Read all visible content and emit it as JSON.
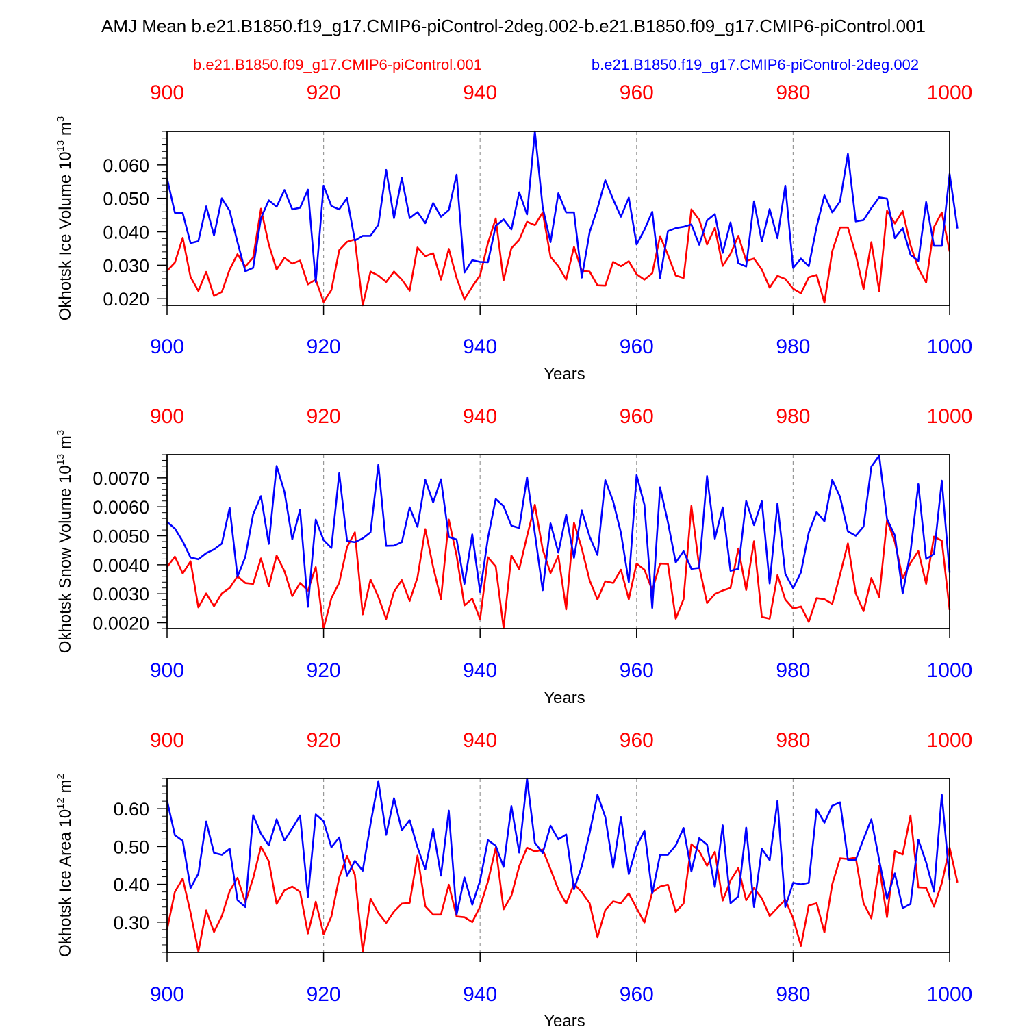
{
  "title": "AMJ Mean b.e21.B1850.f19_g17.CMIP6-piControl-2deg.002-b.e21.B1850.f09_g17.CMIP6-piControl.001",
  "legend": {
    "red_label": "b.e21.B1850.f09_g17.CMIP6-piControl.001",
    "blue_label": "b.e21.B1850.f19_g17.CMIP6-piControl-2deg.002"
  },
  "colors": {
    "red": "#ff0000",
    "blue": "#0000ff",
    "axis": "#000000",
    "grid": "#999999"
  },
  "chart_data": [
    {
      "type": "line",
      "title": "",
      "xlabel": "Years",
      "ylabel": "Okhotsk Ice Volume",
      "yunit_base": "10",
      "yunit_exp": "13",
      "yunit_rest": "m",
      "yunit_rest_exp": "3",
      "xlim": [
        900,
        1000
      ],
      "ylim": [
        0.018,
        0.07
      ],
      "yticks": [
        0.02,
        0.03,
        0.04,
        0.05,
        0.06
      ],
      "ytick_labels": [
        "0.020",
        "0.030",
        "0.040",
        "0.050",
        "0.060"
      ],
      "yminor_step": 0.002,
      "xticks": [
        900,
        920,
        940,
        960,
        980,
        1000
      ],
      "xtick_labels": [
        "900",
        "920",
        "940",
        "960",
        "980",
        "1000"
      ],
      "grid_x": [
        920,
        940,
        960,
        980
      ],
      "series": [
        {
          "name": "b.e21.B1850.f09_g17.CMIP6-piControl.001",
          "color": "red",
          "x_start": 900,
          "x_step": 1,
          "values": [
            0.0283,
            0.0308,
            0.0382,
            0.0265,
            0.0223,
            0.028,
            0.0208,
            0.022,
            0.0287,
            0.0333,
            0.0296,
            0.0323,
            0.0469,
            0.0362,
            0.0287,
            0.0322,
            0.0305,
            0.0314,
            0.0243,
            0.0257,
            0.019,
            0.0226,
            0.0345,
            0.037,
            0.0377,
            0.018,
            0.0281,
            0.0269,
            0.025,
            0.0281,
            0.0257,
            0.0224,
            0.0353,
            0.0327,
            0.0336,
            0.0257,
            0.0349,
            0.0262,
            0.0198,
            0.0236,
            0.027,
            0.0366,
            0.044,
            0.0255,
            0.0351,
            0.0376,
            0.043,
            0.042,
            0.0458,
            0.0325,
            0.0297,
            0.0257,
            0.0355,
            0.0283,
            0.0281,
            0.024,
            0.0239,
            0.031,
            0.0297,
            0.0312,
            0.0273,
            0.0257,
            0.0276,
            0.0387,
            0.0331,
            0.0269,
            0.0262,
            0.0467,
            0.0436,
            0.0362,
            0.0412,
            0.0298,
            0.0334,
            0.0388,
            0.0313,
            0.032,
            0.0287,
            0.0233,
            0.0268,
            0.0259,
            0.023,
            0.0216,
            0.0264,
            0.0271,
            0.0188,
            0.0342,
            0.0413,
            0.0413,
            0.0332,
            0.0229,
            0.0369,
            0.0223,
            0.0463,
            0.0425,
            0.0462,
            0.036,
            0.0291,
            0.0248,
            0.0414,
            0.0458,
            0.0341
          ]
        },
        {
          "name": "b.e21.B1850.f19_g17.CMIP6-piControl-2deg.002",
          "color": "blue",
          "x_start": 900,
          "x_step": 1,
          "values": [
            0.056,
            0.0457,
            0.0456,
            0.0366,
            0.0372,
            0.0476,
            0.0389,
            0.05,
            0.0463,
            0.0369,
            0.0282,
            0.0292,
            0.0441,
            0.0494,
            0.0475,
            0.0525,
            0.0467,
            0.0472,
            0.0526,
            0.025,
            0.0538,
            0.0477,
            0.0467,
            0.0501,
            0.0374,
            0.0388,
            0.0388,
            0.0421,
            0.0585,
            0.0441,
            0.0561,
            0.0441,
            0.0459,
            0.0426,
            0.0486,
            0.0445,
            0.0465,
            0.0571,
            0.0278,
            0.0315,
            0.031,
            0.0309,
            0.0418,
            0.0437,
            0.0407,
            0.0518,
            0.0452,
            0.07,
            0.0473,
            0.0369,
            0.0515,
            0.0458,
            0.0458,
            0.0263,
            0.0399,
            0.047,
            0.0554,
            0.0497,
            0.0445,
            0.0502,
            0.0362,
            0.0406,
            0.046,
            0.0262,
            0.0402,
            0.0411,
            0.0415,
            0.0422,
            0.0361,
            0.0434,
            0.0453,
            0.0337,
            0.0428,
            0.0306,
            0.0296,
            0.0491,
            0.0371,
            0.0468,
            0.0381,
            0.0538,
            0.0292,
            0.032,
            0.0297,
            0.0415,
            0.0509,
            0.0458,
            0.0491,
            0.0633,
            0.0431,
            0.0435,
            0.0471,
            0.0503,
            0.0499,
            0.0381,
            0.0411,
            0.0331,
            0.0313,
            0.0489,
            0.0358,
            0.0358,
            0.0573,
            0.041
          ]
        }
      ]
    },
    {
      "type": "line",
      "title": "",
      "xlabel": "Years",
      "ylabel": "Okhotsk Snow Volume",
      "yunit_base": "10",
      "yunit_exp": "13",
      "yunit_rest": "m",
      "yunit_rest_exp": "3",
      "xlim": [
        900,
        1000
      ],
      "ylim": [
        0.0018,
        0.0078
      ],
      "yticks": [
        0.002,
        0.003,
        0.004,
        0.005,
        0.006,
        0.007
      ],
      "ytick_labels": [
        "0.0020",
        "0.0030",
        "0.0040",
        "0.0050",
        "0.0060",
        "0.0070"
      ],
      "yminor_step": 0.0002,
      "xticks": [
        900,
        920,
        940,
        960,
        980,
        1000
      ],
      "xtick_labels": [
        "900",
        "920",
        "940",
        "960",
        "980",
        "1000"
      ],
      "grid_x": [
        920,
        940,
        960,
        980
      ],
      "series": [
        {
          "name": "b.e21.B1850.f09_g17.CMIP6-piControl.001",
          "color": "red",
          "x_start": 900,
          "x_step": 1,
          "values": [
            0.00392,
            0.00428,
            0.0037,
            0.00412,
            0.00253,
            0.00301,
            0.00257,
            0.00301,
            0.0032,
            0.0036,
            0.00337,
            0.00334,
            0.00422,
            0.00325,
            0.00432,
            0.00378,
            0.00292,
            0.00337,
            0.00311,
            0.00392,
            0.0018,
            0.00285,
            0.00338,
            0.00461,
            0.00512,
            0.00229,
            0.00349,
            0.00289,
            0.00213,
            0.00307,
            0.00347,
            0.00275,
            0.00356,
            0.00523,
            0.00392,
            0.00281,
            0.00556,
            0.00431,
            0.0026,
            0.00283,
            0.00212,
            0.00426,
            0.00394,
            0.00182,
            0.00432,
            0.00385,
            0.00499,
            0.00607,
            0.00453,
            0.00371,
            0.00431,
            0.00246,
            0.00545,
            0.00456,
            0.00346,
            0.0028,
            0.00343,
            0.00337,
            0.00383,
            0.00281,
            0.00404,
            0.00383,
            0.00312,
            0.00404,
            0.00403,
            0.00214,
            0.00281,
            0.00603,
            0.00393,
            0.00268,
            0.00299,
            0.00311,
            0.0032,
            0.00456,
            0.00313,
            0.00481,
            0.0022,
            0.00214,
            0.00364,
            0.0028,
            0.00249,
            0.00256,
            0.00203,
            0.00285,
            0.00281,
            0.00265,
            0.00366,
            0.00474,
            0.00301,
            0.0024,
            0.00354,
            0.00289,
            0.00553,
            0.00479,
            0.00354,
            0.00406,
            0.00447,
            0.00334,
            0.00497,
            0.00483,
            0.00244
          ]
        },
        {
          "name": "b.e21.B1850.f19_g17.CMIP6-piControl-2deg.002",
          "color": "blue",
          "x_start": 900,
          "x_step": 1,
          "values": [
            0.00548,
            0.00525,
            0.00481,
            0.00425,
            0.00419,
            0.0044,
            0.00453,
            0.00473,
            0.00597,
            0.00359,
            0.00427,
            0.00574,
            0.00637,
            0.00472,
            0.00741,
            0.00652,
            0.00488,
            0.0059,
            0.00255,
            0.00556,
            0.00485,
            0.00458,
            0.00716,
            0.00482,
            0.00478,
            0.00491,
            0.00512,
            0.00745,
            0.00465,
            0.00466,
            0.00478,
            0.00598,
            0.00531,
            0.00693,
            0.00615,
            0.00695,
            0.00496,
            0.00487,
            0.00334,
            0.00505,
            0.00306,
            0.00492,
            0.00627,
            0.00602,
            0.00535,
            0.00527,
            0.00702,
            0.00508,
            0.00312,
            0.00543,
            0.00442,
            0.00573,
            0.00424,
            0.00587,
            0.00497,
            0.00434,
            0.00692,
            0.00619,
            0.0051,
            0.0034,
            0.00709,
            0.00607,
            0.00251,
            0.00667,
            0.00547,
            0.00408,
            0.00447,
            0.00386,
            0.00389,
            0.00706,
            0.0049,
            0.00598,
            0.00379,
            0.00386,
            0.0062,
            0.00537,
            0.00619,
            0.00335,
            0.00611,
            0.00368,
            0.00319,
            0.00374,
            0.00511,
            0.00582,
            0.0055,
            0.00693,
            0.00634,
            0.00515,
            0.005,
            0.00532,
            0.00739,
            0.00776,
            0.00558,
            0.00501,
            0.00301,
            0.00444,
            0.00678,
            0.0042,
            0.00437,
            0.0069,
            0.00373
          ]
        }
      ]
    },
    {
      "type": "line",
      "title": "",
      "xlabel": "Years",
      "ylabel": "Okhotsk Ice Area",
      "yunit_base": "10",
      "yunit_exp": "12",
      "yunit_rest": "m",
      "yunit_rest_exp": "2",
      "xlim": [
        900,
        1000
      ],
      "ylim": [
        0.22,
        0.68
      ],
      "yticks": [
        0.3,
        0.4,
        0.5,
        0.6
      ],
      "ytick_labels": [
        "0.30",
        "0.40",
        "0.50",
        "0.60"
      ],
      "yminor_step": 0.02,
      "xticks": [
        900,
        920,
        940,
        960,
        980,
        1000
      ],
      "xtick_labels": [
        "900",
        "920",
        "940",
        "960",
        "980",
        "1000"
      ],
      "grid_x": [
        920,
        940,
        960,
        980
      ],
      "series": [
        {
          "name": "b.e21.B1850.f09_g17.CMIP6-piControl.001",
          "color": "red",
          "x_start": 900,
          "x_step": 1,
          "values": [
            0.28,
            0.38,
            0.415,
            0.325,
            0.222,
            0.331,
            0.274,
            0.316,
            0.382,
            0.417,
            0.352,
            0.416,
            0.5,
            0.461,
            0.348,
            0.384,
            0.394,
            0.38,
            0.27,
            0.354,
            0.268,
            0.315,
            0.418,
            0.475,
            0.425,
            0.222,
            0.362,
            0.324,
            0.298,
            0.328,
            0.349,
            0.351,
            0.476,
            0.342,
            0.32,
            0.32,
            0.399,
            0.315,
            0.313,
            0.3,
            0.341,
            0.407,
            0.497,
            0.334,
            0.37,
            0.448,
            0.497,
            0.487,
            0.492,
            0.44,
            0.386,
            0.349,
            0.401,
            0.379,
            0.35,
            0.26,
            0.332,
            0.355,
            0.35,
            0.376,
            0.337,
            0.299,
            0.379,
            0.394,
            0.399,
            0.327,
            0.349,
            0.506,
            0.488,
            0.449,
            0.486,
            0.357,
            0.41,
            0.443,
            0.358,
            0.39,
            0.363,
            0.316,
            0.338,
            0.359,
            0.31,
            0.237,
            0.344,
            0.35,
            0.273,
            0.4,
            0.469,
            0.467,
            0.471,
            0.35,
            0.31,
            0.448,
            0.313,
            0.488,
            0.479,
            0.582,
            0.392,
            0.391,
            0.341,
            0.403,
            0.497,
            0.405
          ]
        },
        {
          "name": "b.e21.B1850.f19_g17.CMIP6-piControl-2deg.002",
          "color": "blue",
          "x_start": 900,
          "x_step": 1,
          "values": [
            0.622,
            0.53,
            0.515,
            0.39,
            0.428,
            0.566,
            0.483,
            0.478,
            0.494,
            0.358,
            0.34,
            0.583,
            0.534,
            0.503,
            0.572,
            0.516,
            0.548,
            0.582,
            0.367,
            0.585,
            0.567,
            0.498,
            0.524,
            0.422,
            0.462,
            0.436,
            0.56,
            0.673,
            0.531,
            0.628,
            0.543,
            0.57,
            0.498,
            0.44,
            0.546,
            0.423,
            0.595,
            0.32,
            0.418,
            0.346,
            0.41,
            0.517,
            0.502,
            0.446,
            0.607,
            0.484,
            0.68,
            0.51,
            0.483,
            0.555,
            0.519,
            0.532,
            0.387,
            0.448,
            0.536,
            0.637,
            0.578,
            0.444,
            0.578,
            0.427,
            0.5,
            0.542,
            0.376,
            0.478,
            0.478,
            0.503,
            0.549,
            0.434,
            0.522,
            0.505,
            0.393,
            0.556,
            0.35,
            0.368,
            0.55,
            0.34,
            0.494,
            0.464,
            0.621,
            0.34,
            0.404,
            0.4,
            0.404,
            0.599,
            0.563,
            0.608,
            0.617,
            0.465,
            0.465,
            0.52,
            0.572,
            0.464,
            0.362,
            0.429,
            0.337,
            0.348,
            0.518,
            0.458,
            0.381,
            0.637,
            0.412
          ]
        }
      ]
    }
  ]
}
